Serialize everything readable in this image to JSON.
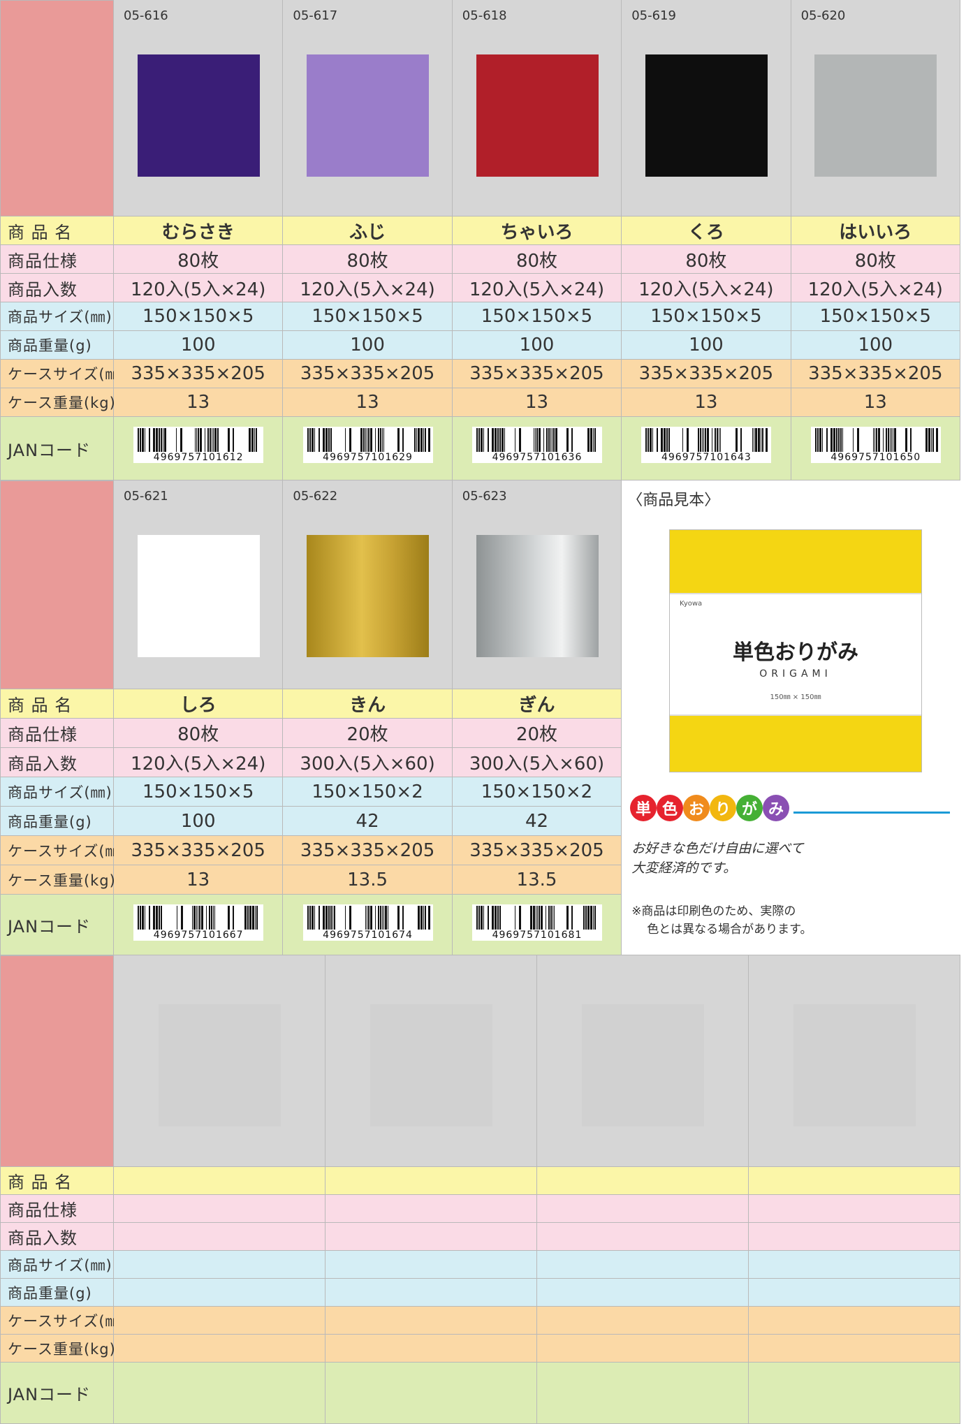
{
  "labels": [
    "商 品 名",
    "商品仕様",
    "商品入数",
    "商品サイズ(㎜)",
    "商品重量(g)",
    "ケースサイズ(㎜)",
    "ケース重量(kg)",
    "JANコード"
  ],
  "sections": [
    {
      "products": [
        {
          "code": "05-616",
          "name": "むらさき",
          "spec": "80枚",
          "qty": "120入(5入×24)",
          "size": "150×150×5",
          "weight": "100",
          "case_size": "335×335×205",
          "case_weight": "13",
          "jan": "4969757101612"
        },
        {
          "code": "05-617",
          "name": "ふじ",
          "spec": "80枚",
          "qty": "120入(5入×24)",
          "size": "150×150×5",
          "weight": "100",
          "case_size": "335×335×205",
          "case_weight": "13",
          "jan": "4969757101629"
        },
        {
          "code": "05-618",
          "name": "ちゃいろ",
          "spec": "80枚",
          "qty": "120入(5入×24)",
          "size": "150×150×5",
          "weight": "100",
          "case_size": "335×335×205",
          "case_weight": "13",
          "jan": "4969757101636"
        },
        {
          "code": "05-619",
          "name": "くろ",
          "spec": "80枚",
          "qty": "120入(5入×24)",
          "size": "150×150×5",
          "weight": "100",
          "case_size": "335×335×205",
          "case_weight": "13",
          "jan": "4969757101643"
        },
        {
          "code": "05-620",
          "name": "はいいろ",
          "spec": "80枚",
          "qty": "120入(5入×24)",
          "size": "150×150×5",
          "weight": "100",
          "case_size": "335×335×205",
          "case_weight": "13",
          "jan": "4969757101650"
        }
      ]
    },
    {
      "products": [
        {
          "code": "05-621",
          "name": "しろ",
          "spec": "80枚",
          "qty": "120入(5入×24)",
          "size": "150×150×5",
          "weight": "100",
          "case_size": "335×335×205",
          "case_weight": "13",
          "jan": "4969757101667"
        },
        {
          "code": "05-622",
          "name": "きん",
          "spec": "20枚",
          "qty": "300入(5入×60)",
          "size": "150×150×2",
          "weight": "42",
          "case_size": "335×335×205",
          "case_weight": "13.5",
          "jan": "4969757101674"
        },
        {
          "code": "05-623",
          "name": "ぎん",
          "spec": "20枚",
          "qty": "300入(5入×60)",
          "size": "150×150×2",
          "weight": "42",
          "case_size": "335×335×205",
          "case_weight": "13.5",
          "jan": "4969757101681"
        }
      ],
      "sample": {
        "heading": "〈商品見本〉",
        "brand": "Kyowa",
        "title": "単色おりがみ",
        "subtitle": "ORIGAMI",
        "size": "150㎜ × 150㎜"
      },
      "logo": [
        "単",
        "色",
        "お",
        "り",
        "が",
        "み"
      ],
      "catch": [
        "お好きな色だけ自由に選べて",
        "大変経済的です。"
      ],
      "note": [
        "※商品は印刷色のため、実際の",
        "色とは異なる場合があります。"
      ]
    },
    {
      "products": []
    }
  ]
}
